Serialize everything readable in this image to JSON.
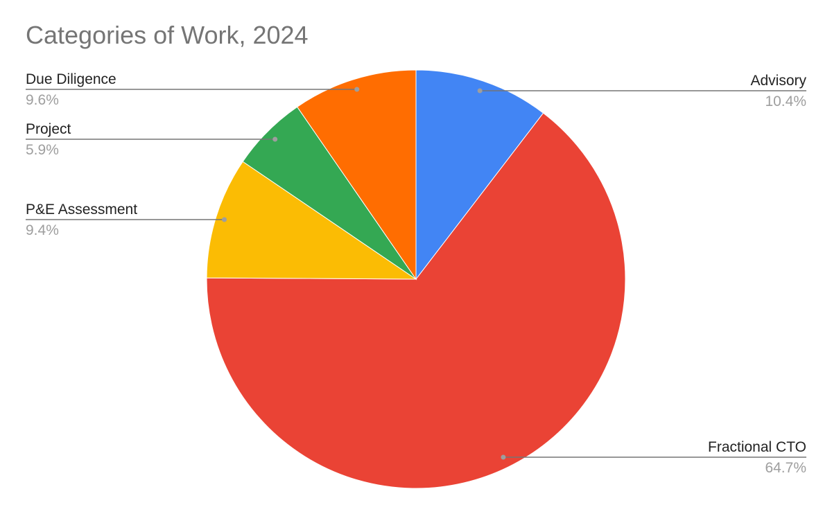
{
  "chart_data": {
    "type": "pie",
    "title": "Categories of Work, 2024",
    "start_angle_deg": 0,
    "direction": "clockwise",
    "slices": [
      {
        "label": "Advisory",
        "value": 10.4,
        "percent_label": "10.4%",
        "color": "#4285f4"
      },
      {
        "label": "Fractional CTO",
        "value": 64.7,
        "percent_label": "64.7%",
        "color": "#ea4335"
      },
      {
        "label": "P&E Assessment",
        "value": 9.4,
        "percent_label": "9.4%",
        "color": "#fbbc04"
      },
      {
        "label": "Project",
        "value": 5.9,
        "percent_label": "5.9%",
        "color": "#34a853"
      },
      {
        "label": "Due Diligence",
        "value": 9.6,
        "percent_label": "9.6%",
        "color": "#ff6d01"
      }
    ],
    "legend": "none",
    "label_style": "leader-lines"
  }
}
